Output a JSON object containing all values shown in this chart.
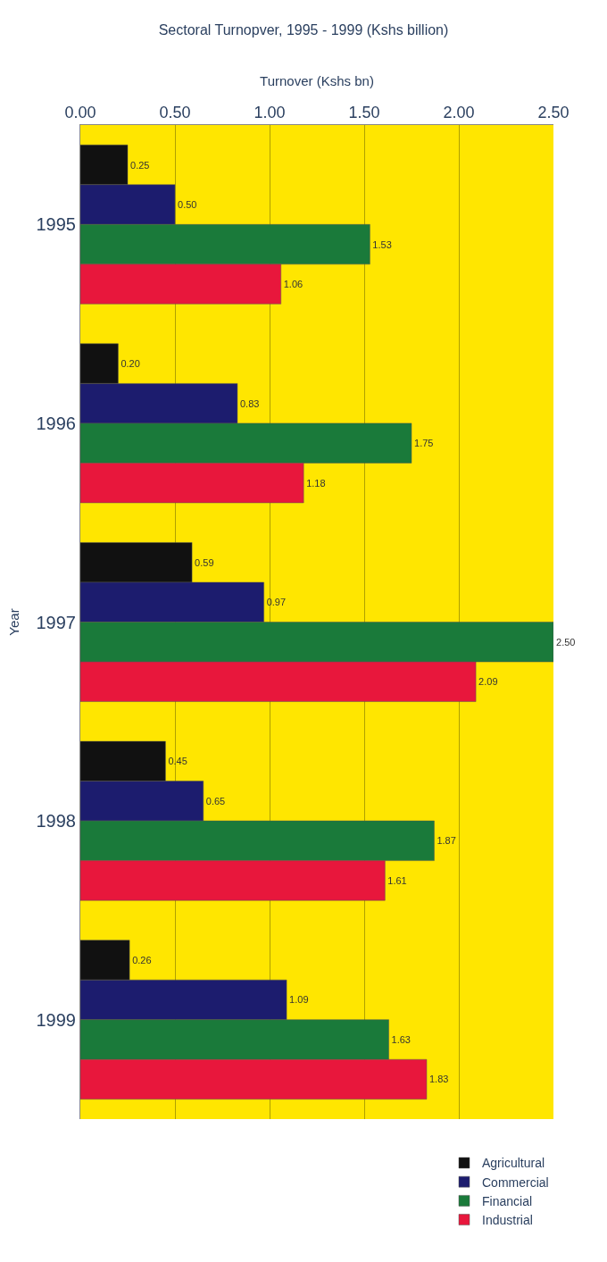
{
  "chart_data": {
    "type": "bar",
    "orientation": "horizontal",
    "title": "Sectoral Turnopver, 1995 - 1999 (Kshs billion)",
    "xlabel": "Turnover (Kshs bn)",
    "ylabel": "Year",
    "categories": [
      "1995",
      "1996",
      "1997",
      "1998",
      "1999"
    ],
    "series": [
      {
        "name": "Agricultural",
        "color": "#111111",
        "values": [
          0.25,
          0.2,
          0.59,
          0.45,
          0.26
        ],
        "value_labels": [
          "0.25",
          "0.20",
          "0.59",
          "0.45",
          "0.26"
        ]
      },
      {
        "name": "Commercial",
        "color": "#1c1c6e",
        "values": [
          0.5,
          0.83,
          0.97,
          0.65,
          1.09
        ],
        "value_labels": [
          "0.50",
          "0.83",
          "0.97",
          "0.65",
          "1.09"
        ]
      },
      {
        "name": "Financial",
        "color": "#1a7a3a",
        "values": [
          1.53,
          1.75,
          2.5,
          1.87,
          1.63
        ],
        "value_labels": [
          "1.53",
          "1.75",
          "2.50",
          "1.87",
          "1.63"
        ]
      },
      {
        "name": "Industrial",
        "color": "#e8173c",
        "values": [
          1.06,
          1.18,
          2.09,
          1.61,
          1.83
        ],
        "value_labels": [
          "1.06",
          "1.18",
          "2.09",
          "1.61",
          "1.83"
        ]
      }
    ],
    "xlim": [
      0,
      2.5
    ],
    "xticks": [
      {
        "value": 0,
        "label": "0.00"
      },
      {
        "value": 0.5,
        "label": "0.50"
      },
      {
        "value": 1,
        "label": "1.00"
      },
      {
        "value": 1.5,
        "label": "1.50"
      },
      {
        "value": 2,
        "label": "2.00"
      },
      {
        "value": 2.5,
        "label": "2.50"
      }
    ],
    "grid": "x",
    "legend": "bottom right"
  }
}
